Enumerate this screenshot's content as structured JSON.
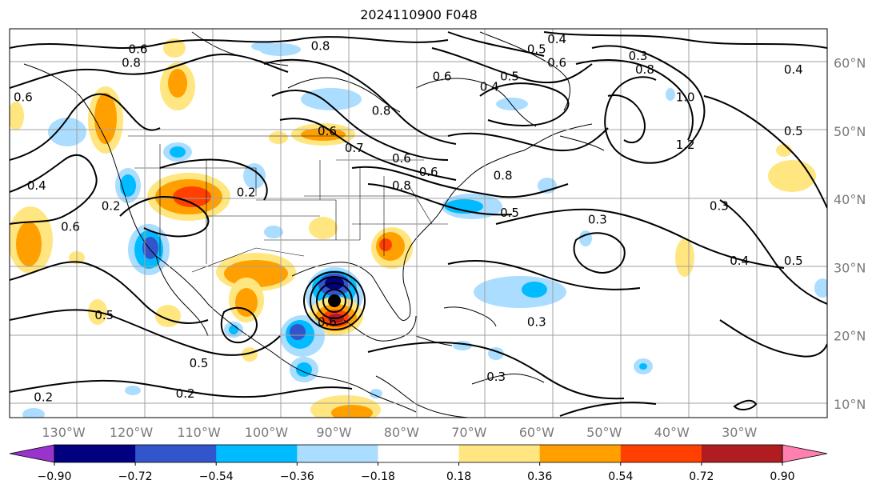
{
  "title": "2024110900 F048",
  "map": {
    "lon_labels": [
      "130°W",
      "120°W",
      "110°W",
      "100°W",
      "90°W",
      "80°W",
      "70°W",
      "60°W",
      "50°W",
      "40°W",
      "30°W"
    ],
    "lat_labels": [
      "60°N",
      "50°N",
      "40°N",
      "30°N",
      "20°N",
      "10°N"
    ],
    "lon_range": [
      -138,
      -17
    ],
    "lat_range": [
      8,
      65
    ],
    "grid": true,
    "contour_labels": [
      {
        "text": "0.8",
        "lon": -120,
        "lat": 60
      },
      {
        "text": "0.6",
        "lon": -136,
        "lat": 55
      },
      {
        "text": "0.6",
        "lon": -119,
        "lat": 62
      },
      {
        "text": "0.8",
        "lon": -92,
        "lat": 62.5
      },
      {
        "text": "0.5",
        "lon": -60,
        "lat": 62
      },
      {
        "text": "0.4",
        "lon": -57,
        "lat": 63.5
      },
      {
        "text": "0.6",
        "lon": -74,
        "lat": 58
      },
      {
        "text": "0.5",
        "lon": -64,
        "lat": 58
      },
      {
        "text": "0.4",
        "lon": -67,
        "lat": 56.5
      },
      {
        "text": "0.6",
        "lon": -57,
        "lat": 60
      },
      {
        "text": "0.3",
        "lon": -45,
        "lat": 61
      },
      {
        "text": "0.8",
        "lon": -44,
        "lat": 59
      },
      {
        "text": "0.4",
        "lon": -22,
        "lat": 59
      },
      {
        "text": "1.0",
        "lon": -38,
        "lat": 55
      },
      {
        "text": "1.2",
        "lon": -38,
        "lat": 48
      },
      {
        "text": "0.5",
        "lon": -22,
        "lat": 50
      },
      {
        "text": "0.8",
        "lon": -83,
        "lat": 53
      },
      {
        "text": "0.6",
        "lon": -91,
        "lat": 50
      },
      {
        "text": "0.7",
        "lon": -87,
        "lat": 47.5
      },
      {
        "text": "0.6",
        "lon": -80,
        "lat": 46
      },
      {
        "text": "0.8",
        "lon": -80,
        "lat": 42
      },
      {
        "text": "0.6",
        "lon": -76,
        "lat": 44
      },
      {
        "text": "0.8",
        "lon": -65,
        "lat": 43.5
      },
      {
        "text": "0.5",
        "lon": -64,
        "lat": 38
      },
      {
        "text": "0.3",
        "lon": -51,
        "lat": 37
      },
      {
        "text": "0.3",
        "lon": -33,
        "lat": 39
      },
      {
        "text": "0.4",
        "lon": -134,
        "lat": 42
      },
      {
        "text": "0.2",
        "lon": -123,
        "lat": 39
      },
      {
        "text": "0.2",
        "lon": -103,
        "lat": 41
      },
      {
        "text": "0.6",
        "lon": -129,
        "lat": 36
      },
      {
        "text": "0.4",
        "lon": -30,
        "lat": 31
      },
      {
        "text": "0.5",
        "lon": -22,
        "lat": 31
      },
      {
        "text": "0.5",
        "lon": -124,
        "lat": 23
      },
      {
        "text": "0.5",
        "lon": -110,
        "lat": 16
      },
      {
        "text": "0.3",
        "lon": -60,
        "lat": 22
      },
      {
        "text": "0.3",
        "lon": -66,
        "lat": 14
      },
      {
        "text": "0.2",
        "lon": -133,
        "lat": 11
      },
      {
        "text": "0.2",
        "lon": -112,
        "lat": 11.5
      },
      {
        "text": "0.6",
        "lon": -91,
        "lat": 22
      }
    ]
  },
  "colorbar": {
    "levels": [
      -0.9,
      -0.72,
      -0.54,
      -0.36,
      -0.18,
      0.18,
      0.36,
      0.54,
      0.72,
      0.9
    ],
    "tick_labels": [
      "−0.90",
      "−0.72",
      "−0.54",
      "−0.36",
      "−0.18",
      "0.18",
      "0.36",
      "0.54",
      "0.72",
      "0.90"
    ],
    "under_color": "#9933cc",
    "over_color": "#ff80b0",
    "colors": [
      "#000080",
      "#3355cc",
      "#00bbff",
      "#aaddff",
      "#ffffff",
      "#ffe680",
      "#ffa000",
      "#ff4000",
      "#b01c20"
    ]
  }
}
